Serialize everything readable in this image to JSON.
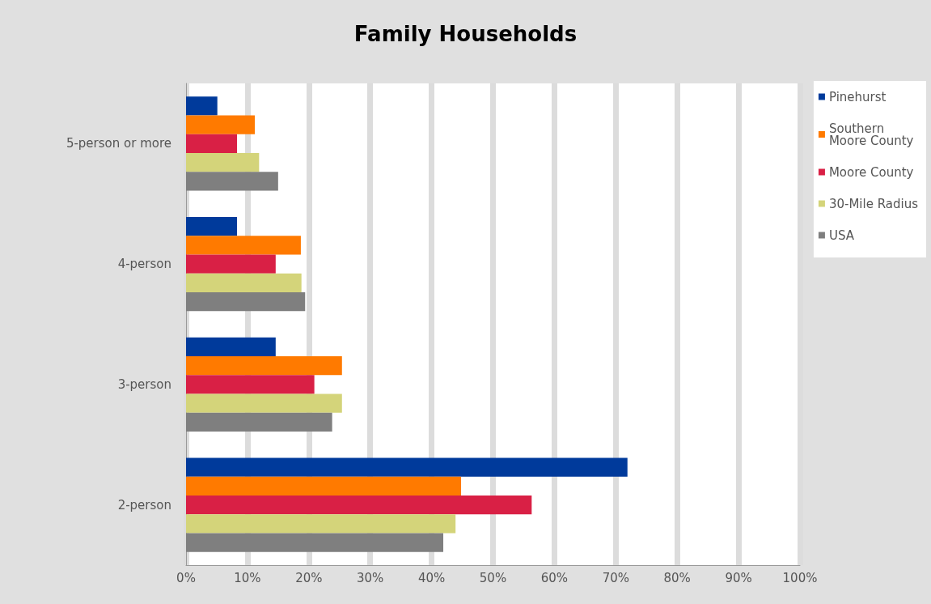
{
  "chart_data": {
    "type": "bar",
    "title": "Family Households",
    "orientation": "horizontal",
    "categories": [
      "5-person or more",
      "4-person",
      "3-person",
      "2-person"
    ],
    "series": [
      {
        "name": "Pinehurst",
        "color": "#003a9b",
        "values": [
          5.1,
          8.3,
          14.6,
          71.9
        ]
      },
      {
        "name": "Southern Moore County",
        "color": "#ff7a00",
        "values": [
          11.2,
          18.7,
          25.4,
          44.8
        ]
      },
      {
        "name": "Moore County",
        "color": "#d92045",
        "values": [
          8.3,
          14.6,
          20.9,
          56.3
        ]
      },
      {
        "name": "30-Mile Radius",
        "color": "#d4d47a",
        "values": [
          11.9,
          18.8,
          25.4,
          43.9
        ]
      },
      {
        "name": "USA",
        "color": "#7f7f7f",
        "values": [
          15.0,
          19.4,
          23.8,
          41.9
        ]
      }
    ],
    "xlim": [
      0,
      100
    ],
    "xticks": [
      {
        "value": 0,
        "label": "0%"
      },
      {
        "value": 10,
        "label": "10%"
      },
      {
        "value": 20,
        "label": "20%"
      },
      {
        "value": 30,
        "label": "30%"
      },
      {
        "value": 40,
        "label": "40%"
      },
      {
        "value": 50,
        "label": "50%"
      },
      {
        "value": 60,
        "label": "60%"
      },
      {
        "value": 70,
        "label": "70%"
      },
      {
        "value": 80,
        "label": "80%"
      },
      {
        "value": 90,
        "label": "90%"
      },
      {
        "value": 100,
        "label": "100%"
      }
    ],
    "grid": "x",
    "legend": "top right"
  }
}
